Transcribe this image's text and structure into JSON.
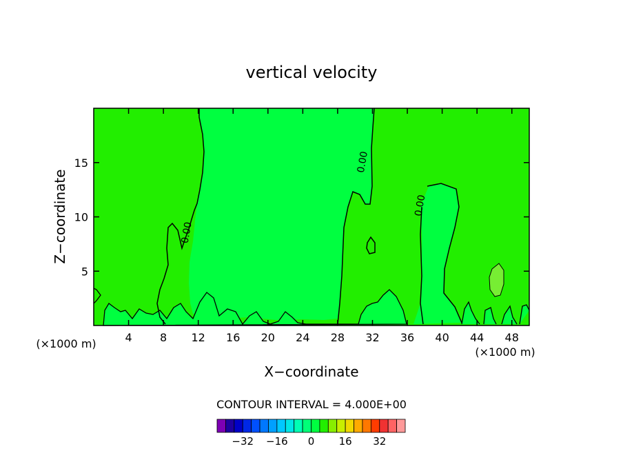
{
  "chart_data": {
    "type": "heatmap",
    "title": "vertical velocity",
    "xlabel": "X−coordinate",
    "ylabel": "Z−coordinate",
    "x_unit_left": "(×1000 m)",
    "x_unit_right": "(×1000 m)",
    "xlim": [
      0,
      50
    ],
    "ylim": [
      0,
      20
    ],
    "x_ticks": [
      4,
      8,
      12,
      16,
      20,
      24,
      28,
      32,
      36,
      40,
      44,
      48
    ],
    "y_ticks": [
      5,
      10,
      15
    ],
    "grid": false,
    "contour_interval_label": "CONTOUR INTERVAL = 4.000E+00",
    "contour_label": "0.00",
    "contour_label_positions": [
      [
        11,
        8.5
      ],
      [
        31.2,
        15
      ],
      [
        37.8,
        11
      ]
    ],
    "regions": [
      {
        "name": "positive",
        "color": "#22ee00"
      },
      {
        "name": "near-zero",
        "color": "#00ff40"
      },
      {
        "name": "weak-updraft",
        "color": "#77ee33"
      }
    ],
    "colorbar": {
      "ticks": [
        -32,
        -16,
        0,
        16,
        32
      ],
      "levels": [
        -40,
        -36,
        -32,
        -28,
        -24,
        -20,
        -16,
        -12,
        -8,
        -4,
        0,
        4,
        8,
        12,
        16,
        20,
        24,
        28,
        32,
        36,
        40
      ],
      "colors": [
        "#7d00b4",
        "#1e00a0",
        "#0000c8",
        "#0028e6",
        "#0050ff",
        "#0078ff",
        "#00a0ff",
        "#00c8ff",
        "#00e6e6",
        "#00ffb4",
        "#00ff78",
        "#00ff40",
        "#22ee00",
        "#88ee00",
        "#c8ee00",
        "#f0d800",
        "#ffaa00",
        "#ff7800",
        "#ff3c00",
        "#f03232",
        "#ff6464",
        "#ff9a9a"
      ]
    }
  }
}
